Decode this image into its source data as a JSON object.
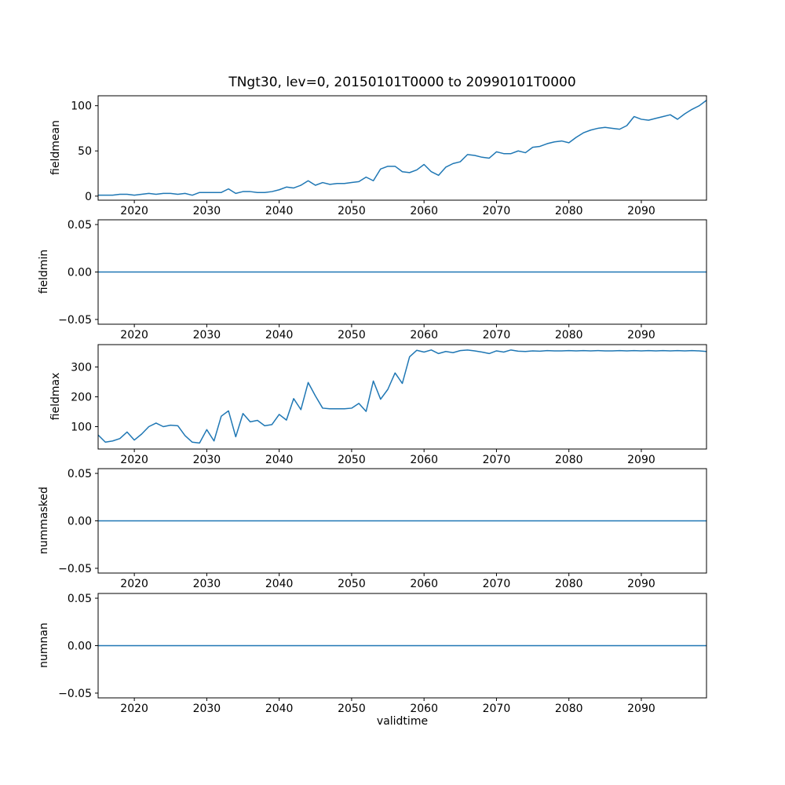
{
  "figure": {
    "title": "TNgt30, lev=0, 20150101T0000 to 20990101T0000",
    "xlabel": "validtime",
    "line_color": "#1f77b4",
    "frame_color": "#000000",
    "text_color": "#000000",
    "background_color": "#ffffff",
    "xticks": [
      {
        "value": 2020,
        "label": "2020"
      },
      {
        "value": 2030,
        "label": "2030"
      },
      {
        "value": 2040,
        "label": "2040"
      },
      {
        "value": 2050,
        "label": "2050"
      },
      {
        "value": 2060,
        "label": "2060"
      },
      {
        "value": 2070,
        "label": "2070"
      },
      {
        "value": 2080,
        "label": "2080"
      },
      {
        "value": 2090,
        "label": "2090"
      }
    ]
  },
  "chart_data": [
    {
      "type": "line",
      "ylabel": "fieldmean",
      "xlim": [
        2015,
        2099
      ],
      "ylim": [
        -4.5,
        111
      ],
      "yticks": [
        {
          "value": 0,
          "label": "0"
        },
        {
          "value": 50,
          "label": "50"
        },
        {
          "value": 100,
          "label": "100"
        }
      ],
      "x_start": 2015,
      "x_step": 1,
      "values": [
        1,
        1,
        1,
        2,
        2,
        1,
        2,
        3,
        2,
        3,
        3,
        2,
        3,
        1,
        4,
        4,
        4,
        4,
        8,
        3,
        5,
        5,
        4,
        4,
        5,
        7,
        10,
        9,
        12,
        17,
        12,
        15,
        13,
        14,
        14,
        15,
        16,
        21,
        17,
        30,
        33,
        33,
        27,
        26,
        29,
        35,
        27,
        23,
        32,
        36,
        38,
        46,
        45,
        43,
        42,
        49,
        47,
        47,
        50,
        48,
        54,
        55,
        58,
        60,
        61,
        59,
        65,
        70,
        73,
        75,
        76,
        75,
        74,
        78,
        88,
        85,
        84,
        86,
        88,
        90,
        85,
        91,
        96,
        100,
        106
      ]
    },
    {
      "type": "line",
      "ylabel": "fieldmin",
      "xlim": [
        2015,
        2099
      ],
      "ylim": [
        -0.055,
        0.055
      ],
      "yticks": [
        {
          "value": -0.05,
          "label": "−0.05"
        },
        {
          "value": 0,
          "label": "0.00"
        },
        {
          "value": 0.05,
          "label": "0.05"
        }
      ],
      "constant_value": 0.0
    },
    {
      "type": "line",
      "ylabel": "fieldmax",
      "xlim": [
        2015,
        2099
      ],
      "ylim": [
        25,
        375
      ],
      "yticks": [
        {
          "value": 100,
          "label": "100"
        },
        {
          "value": 200,
          "label": "200"
        },
        {
          "value": 300,
          "label": "300"
        }
      ],
      "x_start": 2015,
      "x_step": 1,
      "values": [
        72,
        48,
        52,
        60,
        82,
        55,
        75,
        100,
        112,
        100,
        105,
        103,
        70,
        48,
        45,
        90,
        52,
        135,
        153,
        66,
        144,
        116,
        121,
        103,
        107,
        141,
        122,
        194,
        157,
        248,
        203,
        162,
        160,
        160,
        160,
        162,
        178,
        151,
        253,
        192,
        225,
        280,
        245,
        334,
        356,
        350,
        357,
        345,
        352,
        348,
        355,
        357,
        354,
        350,
        345,
        354,
        350,
        357,
        353,
        352,
        354,
        353,
        355,
        354,
        354,
        355,
        354,
        355,
        354,
        355,
        354,
        354,
        355,
        354,
        355,
        354,
        355,
        354,
        355,
        354,
        355,
        354,
        355,
        354,
        352
      ]
    },
    {
      "type": "line",
      "ylabel": "nummasked",
      "xlim": [
        2015,
        2099
      ],
      "ylim": [
        -0.055,
        0.055
      ],
      "yticks": [
        {
          "value": -0.05,
          "label": "−0.05"
        },
        {
          "value": 0,
          "label": "0.00"
        },
        {
          "value": 0.05,
          "label": "0.05"
        }
      ],
      "constant_value": 0.0
    },
    {
      "type": "line",
      "ylabel": "numnan",
      "xlim": [
        2015,
        2099
      ],
      "ylim": [
        -0.055,
        0.055
      ],
      "yticks": [
        {
          "value": -0.05,
          "label": "−0.05"
        },
        {
          "value": 0,
          "label": "0.00"
        },
        {
          "value": 0.05,
          "label": "0.05"
        }
      ],
      "constant_value": 0.0
    }
  ]
}
